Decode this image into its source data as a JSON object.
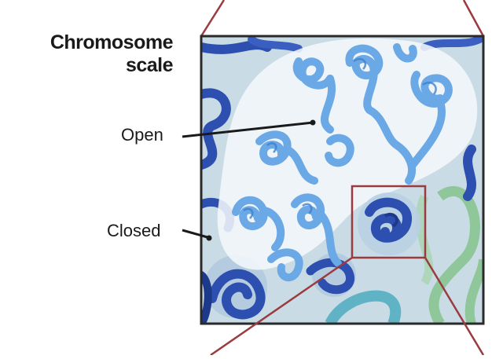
{
  "title_line1": "Chromosome",
  "title_line2": "scale",
  "labels": {
    "open": "Open",
    "closed": "Closed"
  },
  "colors": {
    "open_chromatin": "#6aa8e6",
    "open_chromatin_dark": "#3f7fd0",
    "closed_chromatin": "#2c4fb0",
    "closed_chromatin_dark": "#1d3a8a",
    "teal_fiber": "#5fb3c4",
    "green_fiber": "#8fc79a",
    "box_outline": "#2a2a2a",
    "zoom_outline": "#9b3b3f",
    "background_fill": "#c9dbe4",
    "open_region_fill": "#f2f7fb"
  }
}
